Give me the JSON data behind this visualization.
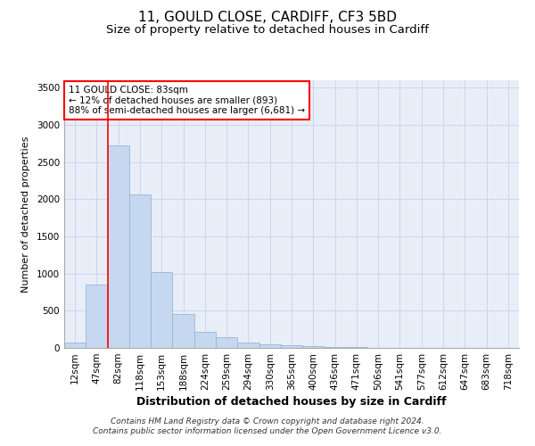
{
  "title1": "11, GOULD CLOSE, CARDIFF, CF3 5BD",
  "title2": "Size of property relative to detached houses in Cardiff",
  "xlabel": "Distribution of detached houses by size in Cardiff",
  "ylabel": "Number of detached properties",
  "categories": [
    "12sqm",
    "47sqm",
    "82sqm",
    "118sqm",
    "153sqm",
    "188sqm",
    "224sqm",
    "259sqm",
    "294sqm",
    "330sqm",
    "365sqm",
    "400sqm",
    "436sqm",
    "471sqm",
    "506sqm",
    "541sqm",
    "577sqm",
    "612sqm",
    "647sqm",
    "683sqm",
    "718sqm"
  ],
  "values": [
    75,
    850,
    2730,
    2060,
    1020,
    455,
    215,
    150,
    70,
    50,
    35,
    25,
    18,
    15,
    5,
    5,
    5,
    5,
    5,
    5,
    5
  ],
  "bar_color": "#c5d8f0",
  "bar_edge_color": "#9ab5d5",
  "red_line_color": "red",
  "red_line_index": 2,
  "annotation_text": "11 GOULD CLOSE: 83sqm\n← 12% of detached houses are smaller (893)\n88% of semi-detached houses are larger (6,681) →",
  "annotation_box_facecolor": "white",
  "annotation_box_edgecolor": "red",
  "ylim": [
    0,
    3600
  ],
  "yticks": [
    0,
    500,
    1000,
    1500,
    2000,
    2500,
    3000,
    3500
  ],
  "grid_color": "#ccd6e8",
  "background_color": "#e8eef8",
  "footer1": "Contains HM Land Registry data © Crown copyright and database right 2024.",
  "footer2": "Contains public sector information licensed under the Open Government Licence v3.0.",
  "title1_fontsize": 11,
  "title2_fontsize": 9.5,
  "xlabel_fontsize": 9,
  "ylabel_fontsize": 8,
  "tick_fontsize": 7.5,
  "footer_fontsize": 6.5,
  "annotation_fontsize": 7.5
}
